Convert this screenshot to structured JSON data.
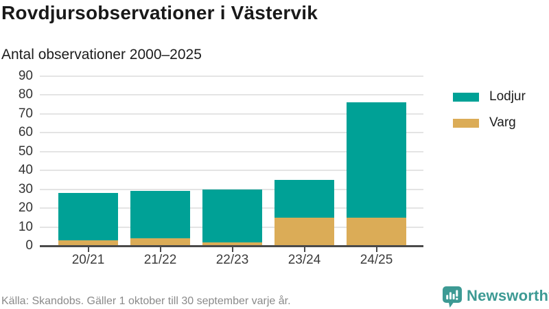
{
  "header": {
    "title": "Rovdjursobservationer i Västervik",
    "subtitle": "Antal observationer 2000–2025"
  },
  "chart_data": {
    "type": "bar",
    "stacked": true,
    "categories": [
      "20/21",
      "21/22",
      "22/23",
      "23/24",
      "24/25"
    ],
    "series": [
      {
        "name": "Lodjur",
        "color": "#00a196",
        "values": [
          25,
          25,
          28,
          20,
          61
        ]
      },
      {
        "name": "Varg",
        "color": "#dbac57",
        "values": [
          3,
          4,
          2,
          15,
          15
        ]
      }
    ],
    "totals": [
      28,
      29,
      30,
      35,
      76
    ],
    "stack_order_bottom_to_top": [
      "Varg",
      "Lodjur"
    ],
    "title": "Rovdjursobservationer i Västervik",
    "subtitle": "Antal observationer 2000–2025",
    "xlabel": "",
    "ylabel": "",
    "ylim": [
      0,
      90
    ],
    "ytick_step": 10,
    "grid": "horizontal",
    "legend_position": "right"
  },
  "footer": {
    "source": "Källa: Skandobs. Gäller 1 oktober till 30 september varje år.",
    "brand_name": "Newsworthy"
  },
  "colors": {
    "lodjur": "#00a196",
    "varg": "#dbac57",
    "axis": "#4a4a4a",
    "grid": "#e4e4e4",
    "brand_teal": "#3d9a94"
  }
}
